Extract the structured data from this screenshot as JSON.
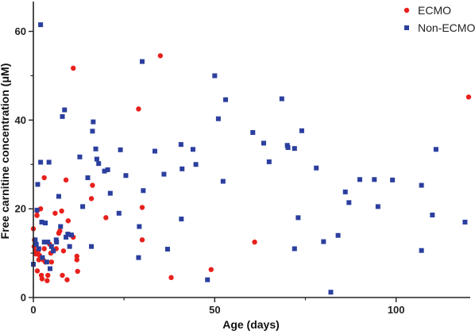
{
  "chart_data": {
    "type": "scatter",
    "xlabel": "Age (days)",
    "ylabel": "Free carnitine concentration (μM)",
    "xlim": [
      0,
      120
    ],
    "ylim": [
      0,
      66
    ],
    "x_ticks": [
      0,
      50,
      100
    ],
    "y_ticks": [
      0,
      20,
      40,
      60
    ],
    "grid": false,
    "legend_position": "top-right",
    "series": [
      {
        "name": "ECMO",
        "marker": "circle",
        "color": "#e8201c",
        "points": [
          [
            0,
            15.5
          ],
          [
            0.2,
            11.5
          ],
          [
            0.3,
            13
          ],
          [
            0.5,
            10.5
          ],
          [
            0.7,
            9.8
          ],
          [
            1,
            18.5
          ],
          [
            1,
            19.5
          ],
          [
            1.1,
            6
          ],
          [
            1.3,
            10.5
          ],
          [
            1.5,
            8.5
          ],
          [
            1.7,
            9.5
          ],
          [
            2,
            20
          ],
          [
            2.2,
            5
          ],
          [
            2.4,
            4.2
          ],
          [
            2.7,
            8.5
          ],
          [
            3,
            11
          ],
          [
            3,
            27
          ],
          [
            3.3,
            8
          ],
          [
            3.8,
            3.8
          ],
          [
            4,
            5
          ],
          [
            4.5,
            12
          ],
          [
            4.8,
            10
          ],
          [
            5,
            8
          ],
          [
            6,
            19
          ],
          [
            6.3,
            11
          ],
          [
            7,
            14.5
          ],
          [
            7.3,
            15
          ],
          [
            7.8,
            19.5
          ],
          [
            8,
            5
          ],
          [
            8.3,
            10.5
          ],
          [
            9,
            26.5
          ],
          [
            9.3,
            4
          ],
          [
            9.6,
            17.3
          ],
          [
            11,
            13.6
          ],
          [
            11,
            51.7
          ],
          [
            12,
            8.5
          ],
          [
            12,
            9.3
          ],
          [
            12.2,
            5.9
          ],
          [
            16,
            22.3
          ],
          [
            16.3,
            25.3
          ],
          [
            20,
            18
          ],
          [
            29,
            42.5
          ],
          [
            30,
            20.3
          ],
          [
            30,
            13
          ],
          [
            35,
            54.5
          ],
          [
            38,
            4.5
          ],
          [
            49,
            6.3
          ],
          [
            61,
            12.5
          ],
          [
            120,
            45.2
          ]
        ]
      },
      {
        "name": "Non-ECMO",
        "marker": "square",
        "color": "#2b3f9f",
        "points": [
          [
            0,
            7.5
          ],
          [
            0.5,
            13
          ],
          [
            0.8,
            12
          ],
          [
            1,
            19.7
          ],
          [
            1.2,
            25.5
          ],
          [
            1.5,
            11
          ],
          [
            2,
            61.5
          ],
          [
            2,
            30.5
          ],
          [
            2.3,
            17
          ],
          [
            2.5,
            9
          ],
          [
            3,
            12.5
          ],
          [
            3.3,
            16.8
          ],
          [
            3.7,
            8
          ],
          [
            4,
            12.5
          ],
          [
            4.3,
            30.5
          ],
          [
            4.6,
            6.5
          ],
          [
            5,
            11.5
          ],
          [
            5.5,
            10.5
          ],
          [
            6.3,
            13
          ],
          [
            6.4,
            12.5
          ],
          [
            7,
            22.8
          ],
          [
            7.5,
            16
          ],
          [
            8,
            40.8
          ],
          [
            8.6,
            42.3
          ],
          [
            9,
            13.6
          ],
          [
            9.5,
            14.3
          ],
          [
            10,
            11.5
          ],
          [
            10.5,
            14.1
          ],
          [
            12.8,
            31.7
          ],
          [
            13.6,
            20.5
          ],
          [
            15,
            27
          ],
          [
            16,
            11.5
          ],
          [
            16.3,
            37.5
          ],
          [
            16.5,
            39.6
          ],
          [
            17.2,
            33.5
          ],
          [
            17.5,
            31.2
          ],
          [
            18,
            30.2
          ],
          [
            19.6,
            28.5
          ],
          [
            20.5,
            28.8
          ],
          [
            21.2,
            23.5
          ],
          [
            23.6,
            19
          ],
          [
            24,
            33.3
          ],
          [
            25.5,
            27.5
          ],
          [
            29,
            9
          ],
          [
            29.2,
            16
          ],
          [
            30,
            53.2
          ],
          [
            30.3,
            24.1
          ],
          [
            33.5,
            33
          ],
          [
            36,
            27.8
          ],
          [
            37,
            10.9
          ],
          [
            40.7,
            34.5
          ],
          [
            40.8,
            17.7
          ],
          [
            41,
            29
          ],
          [
            44,
            33.4
          ],
          [
            44.8,
            30
          ],
          [
            48,
            4
          ],
          [
            50,
            50
          ],
          [
            51,
            40.3
          ],
          [
            52.3,
            26.2
          ],
          [
            53,
            44.6
          ],
          [
            60.5,
            37.2
          ],
          [
            63.5,
            34.8
          ],
          [
            65,
            30.6
          ],
          [
            68.5,
            44.8
          ],
          [
            70,
            34.3
          ],
          [
            70.2,
            33.8
          ],
          [
            72,
            11
          ],
          [
            72,
            33.6
          ],
          [
            73,
            18
          ],
          [
            74,
            37.6
          ],
          [
            78,
            29.2
          ],
          [
            80,
            12.6
          ],
          [
            82,
            1.2
          ],
          [
            84,
            14
          ],
          [
            86,
            23.8
          ],
          [
            87,
            21.4
          ],
          [
            90,
            26.6
          ],
          [
            94,
            26.6
          ],
          [
            95,
            20.5
          ],
          [
            99,
            26.5
          ],
          [
            107,
            10.6
          ],
          [
            107,
            25.3
          ],
          [
            110,
            18.6
          ],
          [
            111,
            33.4
          ],
          [
            119,
            17
          ]
        ]
      }
    ]
  }
}
